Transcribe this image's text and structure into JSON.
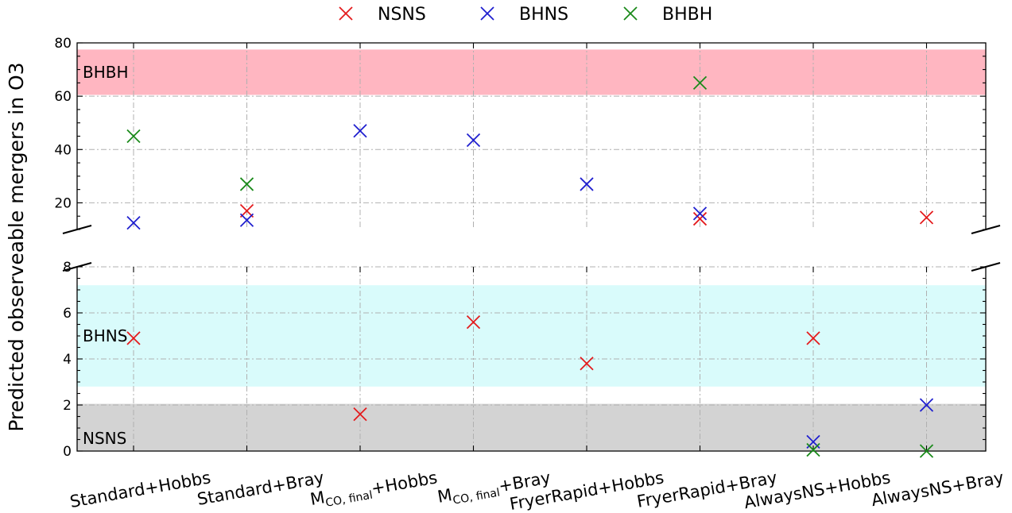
{
  "chart_data": {
    "type": "scatter",
    "ylabel": "Predicted observeable mergers in O3",
    "categories": [
      "Standard+Hobbs",
      "Standard+Bray",
      "M_CO,final+Hobbs",
      "M_CO,final+Bray",
      "FryerRapid+Hobbs",
      "FryerRapid+Bray",
      "AlwaysNS+Hobbs",
      "AlwaysNS+Bray"
    ],
    "category_display": [
      {
        "text": "Standard+Hobbs"
      },
      {
        "text": "Standard+Bray"
      },
      {
        "base": "M",
        "sub": "CO, final",
        "rest": "+Hobbs"
      },
      {
        "base": "M",
        "sub": "CO, final",
        "rest": "+Bray"
      },
      {
        "text": "FryerRapid+Hobbs"
      },
      {
        "text": "FryerRapid+Bray"
      },
      {
        "text": "AlwaysNS+Hobbs"
      },
      {
        "text": "AlwaysNS+Bray"
      }
    ],
    "series": [
      {
        "name": "NSNS",
        "color": "#e41a1c",
        "marker": "x",
        "values": [
          4.9,
          17,
          1.6,
          5.6,
          3.8,
          14,
          4.9,
          14.5
        ]
      },
      {
        "name": "BHNS",
        "color": "#1f1fcf",
        "marker": "x",
        "values": [
          12.5,
          13.5,
          47,
          43.5,
          27,
          16,
          0.4,
          2.0
        ]
      },
      {
        "name": "BHBH",
        "color": "#1a8a1a",
        "marker": "x",
        "values": [
          45,
          27,
          null,
          null,
          null,
          65,
          0.05,
          0.0
        ]
      }
    ],
    "broken_axis": true,
    "upper_panel": {
      "ylim": [
        10,
        80
      ],
      "yticks": [
        20,
        40,
        60,
        80
      ]
    },
    "lower_panel": {
      "ylim": [
        0,
        8
      ],
      "yticks": [
        0,
        2,
        4,
        6,
        8
      ]
    },
    "bands": [
      {
        "label": "BHBH",
        "panel": "upper",
        "range": [
          60.5,
          77.5
        ],
        "color": "#ffb6c1"
      },
      {
        "label": "BHNS",
        "panel": "lower",
        "range": [
          2.8,
          7.2
        ],
        "color": "#d9fbfb"
      },
      {
        "label": "NSNS",
        "panel": "lower",
        "range": [
          0,
          2.05
        ],
        "color": "#d3d3d3"
      }
    ],
    "grid": true,
    "legend_position": "top-center"
  }
}
